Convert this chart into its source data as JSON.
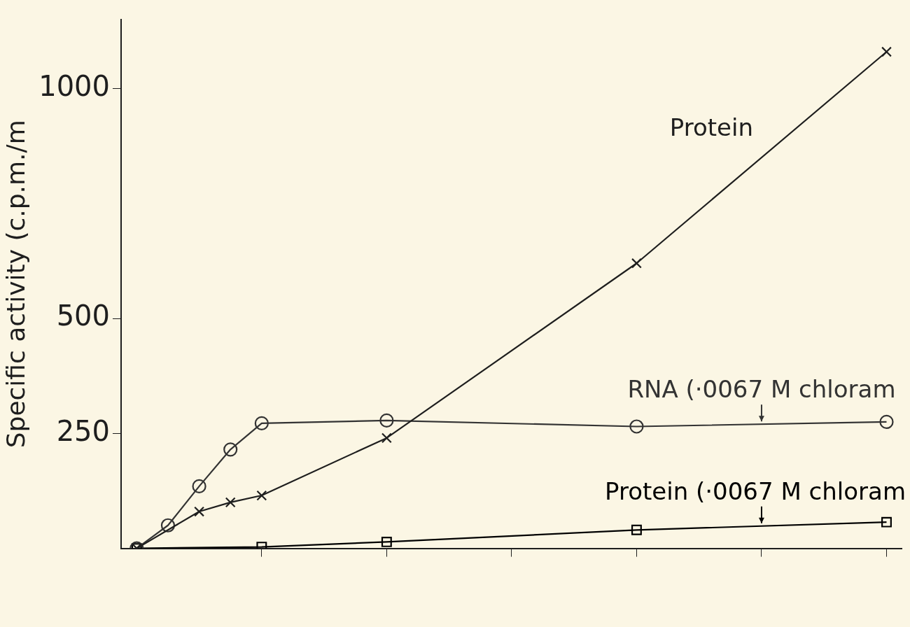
{
  "chart_data": {
    "type": "line",
    "ylabel": "Specific activity (c.p.m./m",
    "categories": [
      null,
      null,
      null,
      null,
      null,
      null,
      null,
      null,
      null,
      null,
      null,
      null,
      null,
      null,
      null,
      null,
      null,
      null,
      null,
      null,
      null,
      null,
      null,
      null,
      null
    ],
    "ylim": [
      0,
      1150
    ],
    "yticks": [
      250,
      500,
      1000
    ],
    "grid": false,
    "legend": false,
    "line_style": "solid",
    "series": [
      {
        "name": "Protein",
        "color": "#1e1e1e",
        "marker": "cross",
        "values": [
          0,
          null,
          80,
          100,
          115,
          null,
          null,
          null,
          240,
          null,
          null,
          null,
          null,
          null,
          null,
          null,
          620,
          null,
          null,
          null,
          null,
          null,
          null,
          null,
          1080
        ]
      },
      {
        "name": "RNA (·0067 M chloram",
        "color": "#333333",
        "marker": "circle",
        "values": [
          0,
          50,
          135,
          215,
          272,
          null,
          null,
          null,
          278,
          null,
          null,
          null,
          null,
          null,
          null,
          null,
          265,
          null,
          null,
          null,
          null,
          null,
          null,
          null,
          275
        ]
      },
      {
        "name": "Protein (·0067 M chloram",
        "color": "#000000",
        "marker": "square",
        "values": [
          0,
          null,
          null,
          null,
          3,
          null,
          null,
          null,
          14,
          null,
          null,
          null,
          null,
          null,
          null,
          null,
          40,
          null,
          null,
          null,
          null,
          null,
          null,
          null,
          57
        ]
      }
    ]
  }
}
